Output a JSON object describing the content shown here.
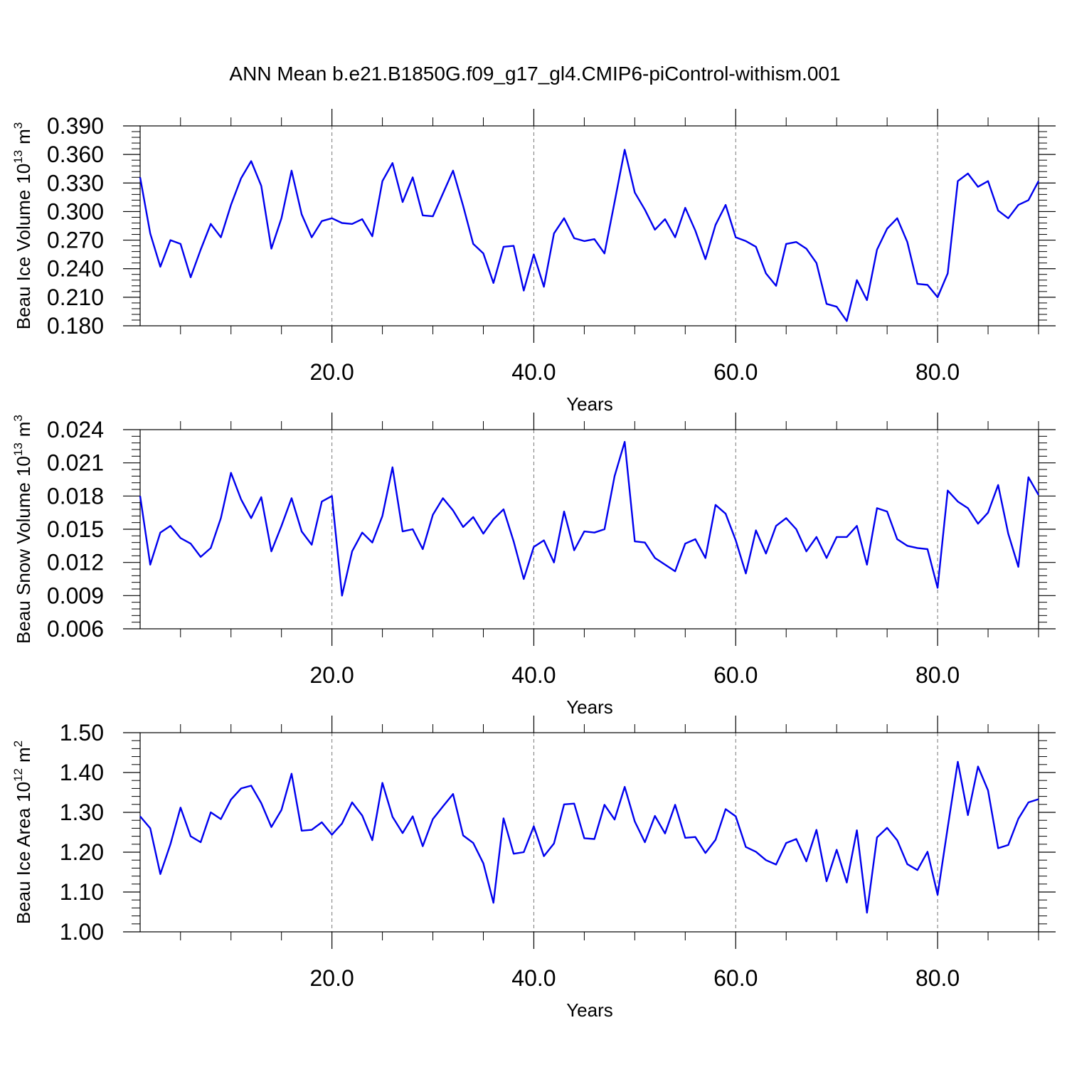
{
  "title": "ANN Mean b.e21.B1850G.f09_g17_gl4.CMIP6-piControl-withism.001",
  "line_color": "#0000ee",
  "chart_data": [
    {
      "type": "line",
      "ylabel": "Beau Ice Volume",
      "yunit_base": "10",
      "yunit_exp": "13",
      "yunit_sym": "m",
      "yunit_pow": "3",
      "xlabel": "Years",
      "xlim": [
        1,
        90
      ],
      "ylim": [
        0.18,
        0.39
      ],
      "yticks": [
        0.18,
        0.21,
        0.24,
        0.27,
        0.3,
        0.33,
        0.36,
        0.39
      ],
      "ytick_labels": [
        "0.180",
        "0.210",
        "0.240",
        "0.270",
        "0.300",
        "0.330",
        "0.360",
        "0.390"
      ],
      "xticks": [
        20,
        40,
        60,
        80
      ],
      "xtick_labels": [
        "20.0",
        "40.0",
        "60.0",
        "80.0"
      ],
      "grid_x": true,
      "series": [
        {
          "x": [
            1,
            2,
            3,
            4,
            5,
            6,
            7,
            8,
            9,
            10,
            11,
            12,
            13,
            14,
            15,
            16,
            17,
            18,
            19,
            20,
            21,
            22,
            23,
            24,
            25,
            26,
            27,
            28,
            29,
            30,
            31,
            32,
            33,
            34,
            35,
            36,
            37,
            38,
            39,
            40,
            41,
            42,
            43,
            44,
            45,
            46,
            47,
            48,
            49,
            50,
            51,
            52,
            53,
            54,
            55,
            56,
            57,
            58,
            59,
            60,
            61,
            62,
            63,
            64,
            65,
            66,
            67,
            68,
            69,
            70,
            71,
            72,
            73,
            74,
            75,
            76,
            77,
            78,
            79,
            80,
            81,
            82,
            83,
            84,
            85,
            86,
            87,
            88,
            89,
            90
          ],
          "values": [
            0.336,
            0.277,
            0.242,
            0.27,
            0.266,
            0.231,
            0.26,
            0.287,
            0.273,
            0.307,
            0.335,
            0.353,
            0.327,
            0.261,
            0.293,
            0.343,
            0.297,
            0.273,
            0.29,
            0.293,
            0.288,
            0.287,
            0.292,
            0.274,
            0.332,
            0.351,
            0.31,
            0.336,
            0.296,
            0.295,
            0.319,
            0.343,
            0.306,
            0.266,
            0.256,
            0.225,
            0.263,
            0.264,
            0.217,
            0.255,
            0.221,
            0.277,
            0.293,
            0.272,
            0.269,
            0.271,
            0.256,
            0.31,
            0.365,
            0.32,
            0.302,
            0.281,
            0.292,
            0.273,
            0.304,
            0.28,
            0.25,
            0.286,
            0.307,
            0.273,
            0.269,
            0.263,
            0.235,
            0.222,
            0.266,
            0.268,
            0.261,
            0.246,
            0.203,
            0.2,
            0.185,
            0.228,
            0.207,
            0.26,
            0.282,
            0.293,
            0.268,
            0.224,
            0.223,
            0.21,
            0.235,
            0.332,
            0.34,
            0.326,
            0.332,
            0.301,
            0.293,
            0.307,
            0.312,
            0.332
          ]
        }
      ]
    },
    {
      "type": "line",
      "ylabel": "Beau Snow Volume",
      "yunit_base": "10",
      "yunit_exp": "13",
      "yunit_sym": "m",
      "yunit_pow": "3",
      "xlabel": "Years",
      "xlim": [
        1,
        90
      ],
      "ylim": [
        0.006,
        0.024
      ],
      "yticks": [
        0.006,
        0.009,
        0.012,
        0.015,
        0.018,
        0.021,
        0.024
      ],
      "ytick_labels": [
        "0.006",
        "0.009",
        "0.012",
        "0.015",
        "0.018",
        "0.021",
        "0.024"
      ],
      "xticks": [
        20,
        40,
        60,
        80
      ],
      "xtick_labels": [
        "20.0",
        "40.0",
        "60.0",
        "80.0"
      ],
      "grid_x": true,
      "series": [
        {
          "x": [
            1,
            2,
            3,
            4,
            5,
            6,
            7,
            8,
            9,
            10,
            11,
            12,
            13,
            14,
            15,
            16,
            17,
            18,
            19,
            20,
            21,
            22,
            23,
            24,
            25,
            26,
            27,
            28,
            29,
            30,
            31,
            32,
            33,
            34,
            35,
            36,
            37,
            38,
            39,
            40,
            41,
            42,
            43,
            44,
            45,
            46,
            47,
            48,
            49,
            50,
            51,
            52,
            53,
            54,
            55,
            56,
            57,
            58,
            59,
            60,
            61,
            62,
            63,
            64,
            65,
            66,
            67,
            68,
            69,
            70,
            71,
            72,
            73,
            74,
            75,
            76,
            77,
            78,
            79,
            80,
            81,
            82,
            83,
            84,
            85,
            86,
            87,
            88,
            89,
            90
          ],
          "values": [
            0.018,
            0.0118,
            0.0147,
            0.0153,
            0.0142,
            0.0137,
            0.0125,
            0.0133,
            0.016,
            0.0201,
            0.0177,
            0.016,
            0.0179,
            0.013,
            0.0153,
            0.0178,
            0.0148,
            0.0136,
            0.0175,
            0.018,
            0.009,
            0.013,
            0.0147,
            0.0138,
            0.0162,
            0.0206,
            0.0148,
            0.015,
            0.0132,
            0.0163,
            0.0178,
            0.0167,
            0.0152,
            0.0161,
            0.0146,
            0.0159,
            0.0168,
            0.0139,
            0.0105,
            0.0134,
            0.014,
            0.012,
            0.0166,
            0.0131,
            0.0148,
            0.0147,
            0.015,
            0.0198,
            0.0229,
            0.0139,
            0.0138,
            0.0124,
            0.0118,
            0.0112,
            0.0137,
            0.0141,
            0.0124,
            0.0172,
            0.0164,
            0.014,
            0.011,
            0.0149,
            0.0128,
            0.0153,
            0.016,
            0.015,
            0.013,
            0.0143,
            0.0124,
            0.0143,
            0.0143,
            0.0153,
            0.0118,
            0.0169,
            0.0166,
            0.0141,
            0.0135,
            0.0133,
            0.0132,
            0.0097,
            0.0185,
            0.0175,
            0.0169,
            0.0155,
            0.0165,
            0.019,
            0.0146,
            0.0116,
            0.0197,
            0.0181
          ]
        }
      ]
    },
    {
      "type": "line",
      "ylabel": "Beau Ice Area",
      "yunit_base": "10",
      "yunit_exp": "12",
      "yunit_sym": "m",
      "yunit_pow": "2",
      "xlabel": "Years",
      "xlim": [
        1,
        90
      ],
      "ylim": [
        1.0,
        1.5
      ],
      "yticks": [
        1.0,
        1.1,
        1.2,
        1.3,
        1.4,
        1.5
      ],
      "ytick_labels": [
        "1.00",
        "1.10",
        "1.20",
        "1.30",
        "1.40",
        "1.50"
      ],
      "xticks": [
        20,
        40,
        60,
        80
      ],
      "xtick_labels": [
        "20.0",
        "40.0",
        "60.0",
        "80.0"
      ],
      "grid_x": true,
      "series": [
        {
          "x": [
            1,
            2,
            3,
            4,
            5,
            6,
            7,
            8,
            9,
            10,
            11,
            12,
            13,
            14,
            15,
            16,
            17,
            18,
            19,
            20,
            21,
            22,
            23,
            24,
            25,
            26,
            27,
            28,
            29,
            30,
            31,
            32,
            33,
            34,
            35,
            36,
            37,
            38,
            39,
            40,
            41,
            42,
            43,
            44,
            45,
            46,
            47,
            48,
            49,
            50,
            51,
            52,
            53,
            54,
            55,
            56,
            57,
            58,
            59,
            60,
            61,
            62,
            63,
            64,
            65,
            66,
            67,
            68,
            69,
            70,
            71,
            72,
            73,
            74,
            75,
            76,
            77,
            78,
            79,
            80,
            81,
            82,
            83,
            84,
            85,
            86,
            87,
            88,
            89,
            90
          ],
          "values": [
            1.29,
            1.26,
            1.145,
            1.22,
            1.312,
            1.24,
            1.225,
            1.3,
            1.283,
            1.332,
            1.36,
            1.367,
            1.323,
            1.263,
            1.306,
            1.397,
            1.254,
            1.256,
            1.275,
            1.244,
            1.272,
            1.325,
            1.292,
            1.23,
            1.374,
            1.289,
            1.248,
            1.29,
            1.215,
            1.283,
            1.315,
            1.346,
            1.242,
            1.223,
            1.172,
            1.073,
            1.285,
            1.196,
            1.2,
            1.265,
            1.19,
            1.222,
            1.32,
            1.322,
            1.235,
            1.233,
            1.319,
            1.282,
            1.364,
            1.277,
            1.225,
            1.291,
            1.247,
            1.319,
            1.236,
            1.238,
            1.198,
            1.231,
            1.308,
            1.29,
            1.213,
            1.201,
            1.18,
            1.169,
            1.223,
            1.233,
            1.177,
            1.256,
            1.127,
            1.206,
            1.124,
            1.255,
            1.048,
            1.237,
            1.261,
            1.23,
            1.17,
            1.155,
            1.201,
            1.093,
            1.262,
            1.427,
            1.293,
            1.415,
            1.355,
            1.21,
            1.218,
            1.284,
            1.325,
            1.333
          ]
        }
      ]
    }
  ]
}
